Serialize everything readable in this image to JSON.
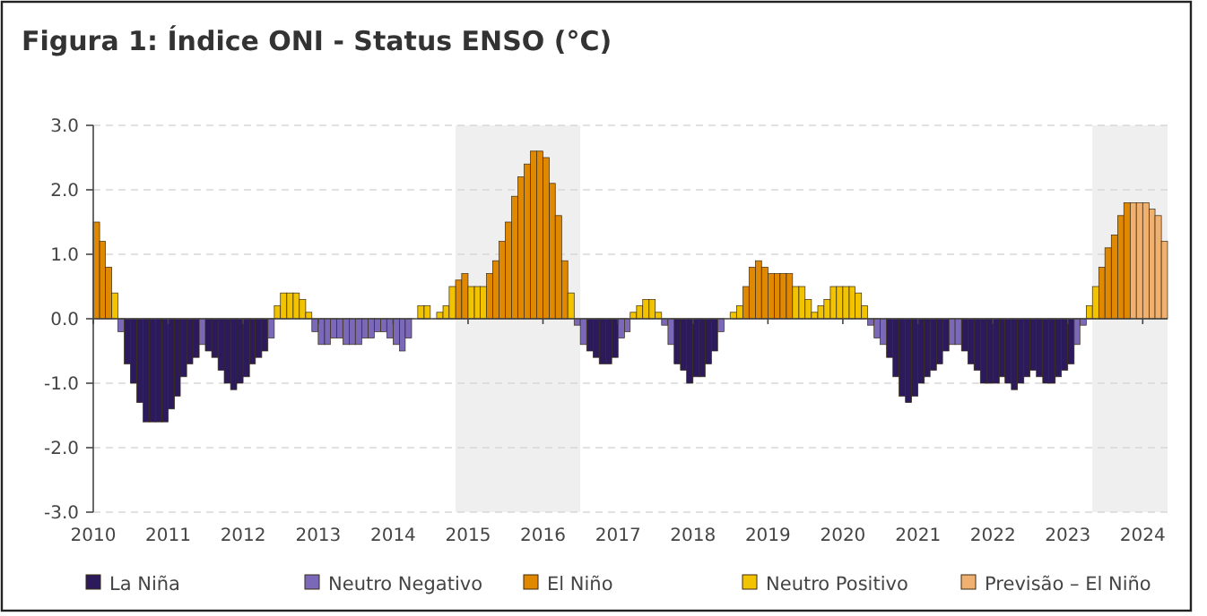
{
  "chart_data": {
    "type": "bar",
    "title": "Figura 1: Índice ONI - Status ENSO (°C)",
    "xlim": [
      "2010-01",
      "2024-05"
    ],
    "xticks": [
      "2010",
      "2011",
      "2012",
      "2013",
      "2014",
      "2015",
      "2016",
      "2017",
      "2018",
      "2019",
      "2020",
      "2021",
      "2022",
      "2023",
      "2024"
    ],
    "ylim": [
      -3,
      3
    ],
    "yticks": [
      {
        "value": -3,
        "label": "-3.0"
      },
      {
        "value": -2,
        "label": "-2.0"
      },
      {
        "value": -1,
        "label": "-1.0"
      },
      {
        "value": 0,
        "label": "0.0"
      },
      {
        "value": 1,
        "label": "1.0"
      },
      {
        "value": 2,
        "label": "2.0"
      },
      {
        "value": 3,
        "label": "3.0"
      }
    ],
    "grid": "y",
    "legend": "bottom",
    "bands": [
      {
        "axis": "x",
        "from": "2014-11",
        "to": "2016-07",
        "color": "#efefef"
      },
      {
        "axis": "x",
        "from": "2023-05",
        "to": "2024-05",
        "color": "#efefef"
      }
    ],
    "series": [
      {
        "name": "La Niña",
        "color": "#2b1a5c",
        "x": [
          "2010-06",
          "2010-07",
          "2010-08",
          "2010-09",
          "2010-10",
          "2010-11",
          "2010-12",
          "2011-01",
          "2011-02",
          "2011-03",
          "2011-04",
          "2011-05",
          "2011-07",
          "2011-08",
          "2011-09",
          "2011-10",
          "2011-11",
          "2011-12",
          "2012-01",
          "2012-02",
          "2012-03",
          "2012-04",
          "2016-08",
          "2016-09",
          "2016-10",
          "2016-11",
          "2016-12",
          "2017-10",
          "2017-11",
          "2017-12",
          "2018-01",
          "2018-02",
          "2018-03",
          "2018-04",
          "2020-08",
          "2020-09",
          "2020-10",
          "2020-11",
          "2020-12",
          "2021-01",
          "2021-02",
          "2021-03",
          "2021-04",
          "2021-05",
          "2021-08",
          "2021-09",
          "2021-10",
          "2021-11",
          "2021-12",
          "2022-01",
          "2022-02",
          "2022-03",
          "2022-04",
          "2022-05",
          "2022-06",
          "2022-07",
          "2022-08",
          "2022-09",
          "2022-10",
          "2022-11",
          "2022-12",
          "2023-01"
        ],
        "values": [
          -0.7,
          -1.0,
          -1.3,
          -1.6,
          -1.6,
          -1.6,
          -1.6,
          -1.4,
          -1.2,
          -0.9,
          -0.7,
          -0.6,
          -0.5,
          -0.6,
          -0.8,
          -1.0,
          -1.1,
          -1.0,
          -0.9,
          -0.7,
          -0.6,
          -0.5,
          -0.5,
          -0.6,
          -0.7,
          -0.7,
          -0.6,
          -0.7,
          -0.8,
          -1.0,
          -0.9,
          -0.9,
          -0.7,
          -0.5,
          -0.6,
          -0.9,
          -1.2,
          -1.3,
          -1.2,
          -1.0,
          -0.9,
          -0.8,
          -0.7,
          -0.5,
          -0.5,
          -0.7,
          -0.8,
          -1.0,
          -1.0,
          -1.0,
          -0.9,
          -1.0,
          -1.1,
          -1.0,
          -0.9,
          -0.8,
          -0.9,
          -1.0,
          -1.0,
          -0.9,
          -0.8,
          -0.7
        ]
      },
      {
        "name": "Neutro Negativo",
        "color": "#7a68b8",
        "x": [
          "2010-05",
          "2011-06",
          "2012-05",
          "2012-12",
          "2013-01",
          "2013-02",
          "2013-03",
          "2013-04",
          "2013-05",
          "2013-06",
          "2013-07",
          "2013-08",
          "2013-09",
          "2013-10",
          "2013-11",
          "2013-12",
          "2014-01",
          "2014-02",
          "2014-03",
          "2016-06",
          "2016-07",
          "2017-01",
          "2017-02",
          "2017-08",
          "2017-09",
          "2018-05",
          "2020-05",
          "2020-06",
          "2020-07",
          "2021-06",
          "2021-07",
          "2023-02",
          "2023-03"
        ],
        "values": [
          -0.2,
          -0.4,
          -0.3,
          -0.2,
          -0.4,
          -0.4,
          -0.3,
          -0.3,
          -0.4,
          -0.4,
          -0.4,
          -0.3,
          -0.3,
          -0.2,
          -0.2,
          -0.3,
          -0.4,
          -0.5,
          -0.3,
          -0.1,
          -0.4,
          -0.3,
          -0.2,
          -0.1,
          -0.4,
          -0.2,
          -0.1,
          -0.3,
          -0.4,
          -0.4,
          -0.4,
          -0.4,
          -0.1
        ]
      },
      {
        "name": "El Niño",
        "color": "#e08800",
        "x": [
          "2010-01",
          "2010-02",
          "2010-03",
          "2014-11",
          "2014-12",
          "2015-04",
          "2015-05",
          "2015-06",
          "2015-07",
          "2015-08",
          "2015-09",
          "2015-10",
          "2015-11",
          "2015-12",
          "2016-01",
          "2016-02",
          "2016-03",
          "2016-04",
          "2018-09",
          "2018-10",
          "2018-11",
          "2018-12",
          "2019-01",
          "2019-02",
          "2019-03",
          "2019-04",
          "2023-06",
          "2023-07",
          "2023-08",
          "2023-09",
          "2023-10"
        ],
        "values": [
          1.5,
          1.2,
          0.8,
          0.6,
          0.7,
          0.7,
          0.9,
          1.2,
          1.5,
          1.9,
          2.2,
          2.4,
          2.6,
          2.6,
          2.5,
          2.1,
          1.6,
          0.9,
          0.5,
          0.8,
          0.9,
          0.8,
          0.7,
          0.7,
          0.7,
          0.7,
          0.8,
          1.1,
          1.3,
          1.6,
          1.8
        ]
      },
      {
        "name": "Neutro Positivo",
        "color": "#f2c400",
        "x": [
          "2010-04",
          "2012-06",
          "2012-07",
          "2012-08",
          "2012-09",
          "2012-10",
          "2012-11",
          "2014-05",
          "2014-06",
          "2014-08",
          "2014-09",
          "2014-10",
          "2015-01",
          "2015-02",
          "2015-03",
          "2016-05",
          "2017-03",
          "2017-04",
          "2017-05",
          "2017-06",
          "2017-07",
          "2018-07",
          "2018-08",
          "2019-05",
          "2019-06",
          "2019-07",
          "2019-08",
          "2019-09",
          "2019-10",
          "2019-11",
          "2019-12",
          "2020-01",
          "2020-02",
          "2020-03",
          "2020-04",
          "2023-04",
          "2023-05"
        ],
        "values": [
          0.4,
          0.2,
          0.4,
          0.4,
          0.4,
          0.3,
          0.1,
          0.2,
          0.2,
          0.1,
          0.2,
          0.5,
          0.5,
          0.5,
          0.5,
          0.4,
          0.1,
          0.2,
          0.3,
          0.3,
          0.1,
          0.1,
          0.2,
          0.5,
          0.5,
          0.3,
          0.1,
          0.2,
          0.3,
          0.5,
          0.5,
          0.5,
          0.5,
          0.4,
          0.2,
          0.2,
          0.5
        ]
      },
      {
        "name": "Previsão – El Niño",
        "color": "#f0b070",
        "x": [
          "2023-11",
          "2023-12",
          "2024-01",
          "2024-02",
          "2024-03",
          "2024-04"
        ],
        "values": [
          1.8,
          1.8,
          1.8,
          1.7,
          1.6,
          1.2
        ]
      }
    ]
  }
}
